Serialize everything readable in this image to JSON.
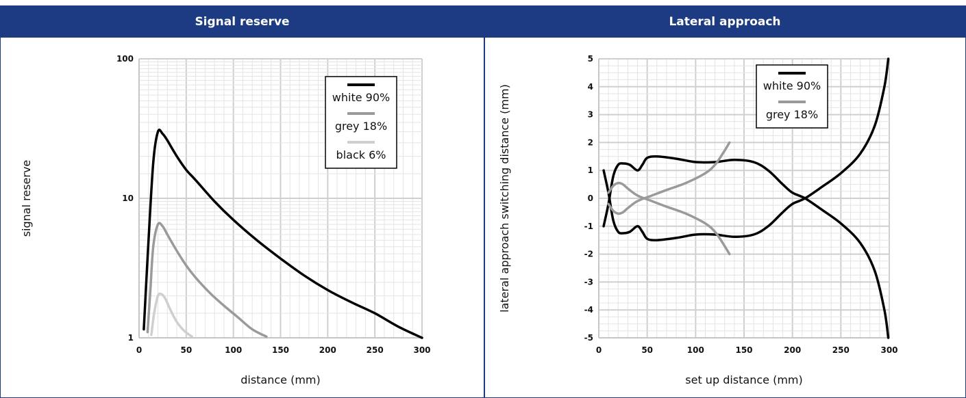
{
  "panels": {
    "left_title": "Signal reserve",
    "right_title": "Lateral approach"
  },
  "colors": {
    "header": "#1c3b82",
    "white90": "#000000",
    "grey18": "#9a9a9a",
    "black6": "#cfcfcf"
  },
  "chart_data": [
    {
      "type": "line",
      "title": "Signal reserve",
      "xlabel": "distance (mm)",
      "ylabel": "signal reserve",
      "xlim": [
        0,
        300
      ],
      "ylim": [
        1,
        100
      ],
      "yscale": "log",
      "xticks": [
        "0",
        "50",
        "100",
        "150",
        "200",
        "250",
        "300"
      ],
      "yticks": [
        "1",
        "10",
        "100"
      ],
      "grid": true,
      "legend_position": "top-right",
      "series": [
        {
          "name": "white 90%",
          "color": "#000000",
          "x": [
            5,
            10,
            15,
            20,
            25,
            30,
            40,
            50,
            60,
            80,
            100,
            125,
            150,
            175,
            200,
            225,
            250,
            275,
            300
          ],
          "y": [
            1.15,
            5,
            18,
            30,
            29,
            26,
            20,
            16,
            13.5,
            9.5,
            7,
            5,
            3.7,
            2.8,
            2.2,
            1.8,
            1.5,
            1.2,
            1.0
          ]
        },
        {
          "name": "grey 18%",
          "color": "#9a9a9a",
          "x": [
            9,
            12,
            15,
            20,
            25,
            30,
            40,
            50,
            60,
            75,
            90,
            105,
            120,
            135
          ],
          "y": [
            1.1,
            2.2,
            4.5,
            6.5,
            6.3,
            5.5,
            4.2,
            3.3,
            2.7,
            2.1,
            1.7,
            1.4,
            1.15,
            1.02
          ]
        },
        {
          "name": "black 6%",
          "color": "#cfcfcf",
          "x": [
            13,
            16,
            20,
            24,
            28,
            33,
            40,
            48,
            56
          ],
          "y": [
            1.05,
            1.5,
            2.0,
            2.05,
            1.9,
            1.6,
            1.3,
            1.12,
            1.02
          ]
        }
      ]
    },
    {
      "type": "line",
      "title": "Lateral approach",
      "xlabel": "set up distance (mm)",
      "ylabel": "lateral approach switching distance (mm)",
      "xlim": [
        0,
        300
      ],
      "ylim": [
        -5,
        5
      ],
      "xticks": [
        "0",
        "50",
        "100",
        "150",
        "200",
        "250",
        "300"
      ],
      "yticks": [
        "-5",
        "-4",
        "-3",
        "-2",
        "-1",
        "0",
        "1",
        "2",
        "3",
        "4",
        "5"
      ],
      "grid": true,
      "legend_position": "top-right",
      "series": [
        {
          "name": "white 90%",
          "color": "#000000",
          "x": [
            5,
            10,
            15,
            20,
            25,
            32,
            40,
            45,
            50,
            60,
            80,
            100,
            120,
            140,
            160,
            175,
            190,
            200,
            213,
            230,
            250,
            270,
            285,
            295,
            299
          ],
          "y": [
            -1.0,
            -0.2,
            0.8,
            1.2,
            1.25,
            1.2,
            1.0,
            1.2,
            1.45,
            1.5,
            1.42,
            1.3,
            1.3,
            1.38,
            1.3,
            1.0,
            0.5,
            0.2,
            0.0,
            -0.4,
            -0.9,
            -1.6,
            -2.6,
            -4.0,
            -5.0
          ]
        },
        {
          "name": "",
          "color": "#000000",
          "x": [
            5,
            10,
            15,
            20,
            25,
            32,
            40,
            45,
            50,
            60,
            80,
            100,
            120,
            140,
            160,
            175,
            190,
            200,
            213,
            230,
            250,
            270,
            285,
            295,
            299
          ],
          "y": [
            1.0,
            0.2,
            -0.8,
            -1.2,
            -1.25,
            -1.2,
            -1.0,
            -1.2,
            -1.45,
            -1.5,
            -1.42,
            -1.3,
            -1.3,
            -1.38,
            -1.3,
            -1.0,
            -0.5,
            -0.2,
            0.0,
            0.4,
            0.9,
            1.6,
            2.6,
            4.0,
            5.0
          ]
        },
        {
          "name": "grey 18%",
          "color": "#9a9a9a",
          "x": [
            10,
            15,
            20,
            25,
            30,
            40,
            55,
            70,
            90,
            110,
            120,
            128,
            135
          ],
          "y": [
            -0.2,
            -0.45,
            -0.55,
            -0.5,
            -0.35,
            -0.1,
            0.1,
            0.3,
            0.55,
            0.9,
            1.2,
            1.6,
            2.0
          ]
        },
        {
          "name": "",
          "color": "#9a9a9a",
          "x": [
            10,
            15,
            20,
            25,
            30,
            40,
            55,
            70,
            90,
            110,
            120,
            128,
            135
          ],
          "y": [
            0.2,
            0.45,
            0.55,
            0.5,
            0.35,
            0.1,
            -0.1,
            -0.3,
            -0.55,
            -0.9,
            -1.2,
            -1.6,
            -2.0
          ]
        }
      ]
    }
  ]
}
